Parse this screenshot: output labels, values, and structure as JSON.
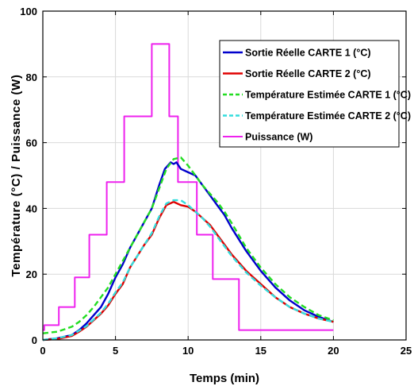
{
  "chart_data": {
    "type": "line",
    "xlabel": "Temps (min)",
    "ylabel": "Température (°C) / Puissance (W)",
    "xlim": [
      0,
      25
    ],
    "ylim": [
      0,
      100
    ],
    "xticks": [
      0,
      5,
      10,
      15,
      20,
      25
    ],
    "yticks": [
      0,
      20,
      40,
      60,
      80,
      100
    ],
    "grid": true,
    "legend_position": "top-right",
    "series": [
      {
        "name": "Sortie Réelle CARTE 1 (°C)",
        "color": "#0000cc",
        "style": "solid",
        "x": [
          0,
          1,
          2,
          2.5,
          3,
          3.5,
          4,
          4.5,
          5,
          5.5,
          6,
          6.5,
          7,
          7.5,
          8,
          8.4,
          8.8,
          9,
          9.2,
          9.5,
          10,
          10.5,
          11,
          11.5,
          12,
          12.5,
          13,
          14,
          15,
          16,
          17,
          18,
          19,
          20
        ],
        "y": [
          0,
          0.5,
          1.5,
          3,
          5,
          7.5,
          10,
          14,
          19,
          23,
          28,
          32,
          36,
          40,
          47,
          52,
          54,
          53.5,
          54,
          52,
          51,
          50,
          47,
          44,
          41,
          38,
          34,
          27,
          21,
          16,
          12,
          9,
          7,
          5.5
        ]
      },
      {
        "name": "Sortie Réelle CARTE 2 (°C)",
        "color": "#e00000",
        "style": "solid",
        "x": [
          0,
          1,
          2,
          2.5,
          3,
          3.5,
          4,
          4.5,
          5,
          5.5,
          6,
          6.5,
          7,
          7.5,
          8,
          8.5,
          9,
          9.5,
          10,
          10.5,
          11,
          11.5,
          12,
          12.5,
          13,
          14,
          15,
          16,
          17,
          18,
          19,
          20
        ],
        "y": [
          0,
          0.3,
          1.2,
          2.5,
          4,
          6,
          8,
          10.5,
          14,
          17,
          22,
          25.5,
          29,
          32,
          37,
          41,
          42,
          41,
          40.5,
          39,
          37,
          35,
          32,
          29,
          26,
          21,
          17,
          13,
          10,
          8,
          6.5,
          5.5
        ]
      },
      {
        "name": "Température Estimée CARTE 1 (°C)",
        "color": "#22dd22",
        "style": "dashed",
        "x": [
          0,
          1,
          2,
          2.5,
          3,
          3.5,
          4,
          4.5,
          5,
          5.5,
          6,
          6.5,
          7,
          7.5,
          8,
          8.5,
          9,
          9.5,
          10,
          10.5,
          11,
          11.5,
          12,
          12.5,
          13,
          14,
          15,
          16,
          17,
          18,
          19,
          20
        ],
        "y": [
          2,
          2.5,
          4,
          5.5,
          7.5,
          10,
          13,
          16,
          20,
          24,
          28,
          32,
          36,
          40,
          46,
          52,
          55,
          55.5,
          53,
          50,
          47,
          44.5,
          42,
          39,
          35.5,
          28,
          22,
          17,
          13,
          10,
          7.5,
          6
        ]
      },
      {
        "name": "Température Estimée CARTE 2 (°C)",
        "color": "#33dddd",
        "style": "dashed",
        "x": [
          0,
          1,
          2,
          2.5,
          3,
          3.5,
          4,
          4.5,
          5,
          5.5,
          6,
          6.5,
          7,
          7.5,
          8,
          8.5,
          9,
          9.5,
          10,
          10.5,
          11,
          11.5,
          12,
          12.5,
          13,
          14,
          15,
          16,
          17,
          18,
          19,
          20
        ],
        "y": [
          0,
          0.5,
          1.5,
          2.8,
          4.2,
          6.2,
          8.3,
          11,
          14.5,
          17.5,
          22,
          25.5,
          29,
          32.5,
          37.5,
          41.5,
          42.5,
          42.5,
          41,
          39,
          37,
          34.5,
          31.5,
          28.5,
          25.5,
          20.5,
          16.5,
          13,
          10,
          8,
          6.5,
          5.5
        ]
      },
      {
        "name": "Puissance (W)",
        "color": "#ee22ee",
        "style": "step",
        "x": [
          0,
          0.1,
          0.1,
          1.1,
          1.1,
          2.2,
          2.2,
          3.2,
          3.2,
          4.4,
          4.4,
          5.6,
          5.6,
          7.5,
          7.5,
          8.7,
          8.7,
          9.3,
          9.3,
          10.6,
          10.6,
          11.7,
          11.7,
          13.5,
          13.5,
          20
        ],
        "y": [
          3,
          3,
          4.5,
          4.5,
          10,
          10,
          19,
          19,
          32,
          32,
          48,
          48,
          68,
          68,
          90,
          90,
          68,
          68,
          48,
          48,
          32,
          32,
          18.5,
          18.5,
          3,
          3
        ]
      }
    ]
  }
}
